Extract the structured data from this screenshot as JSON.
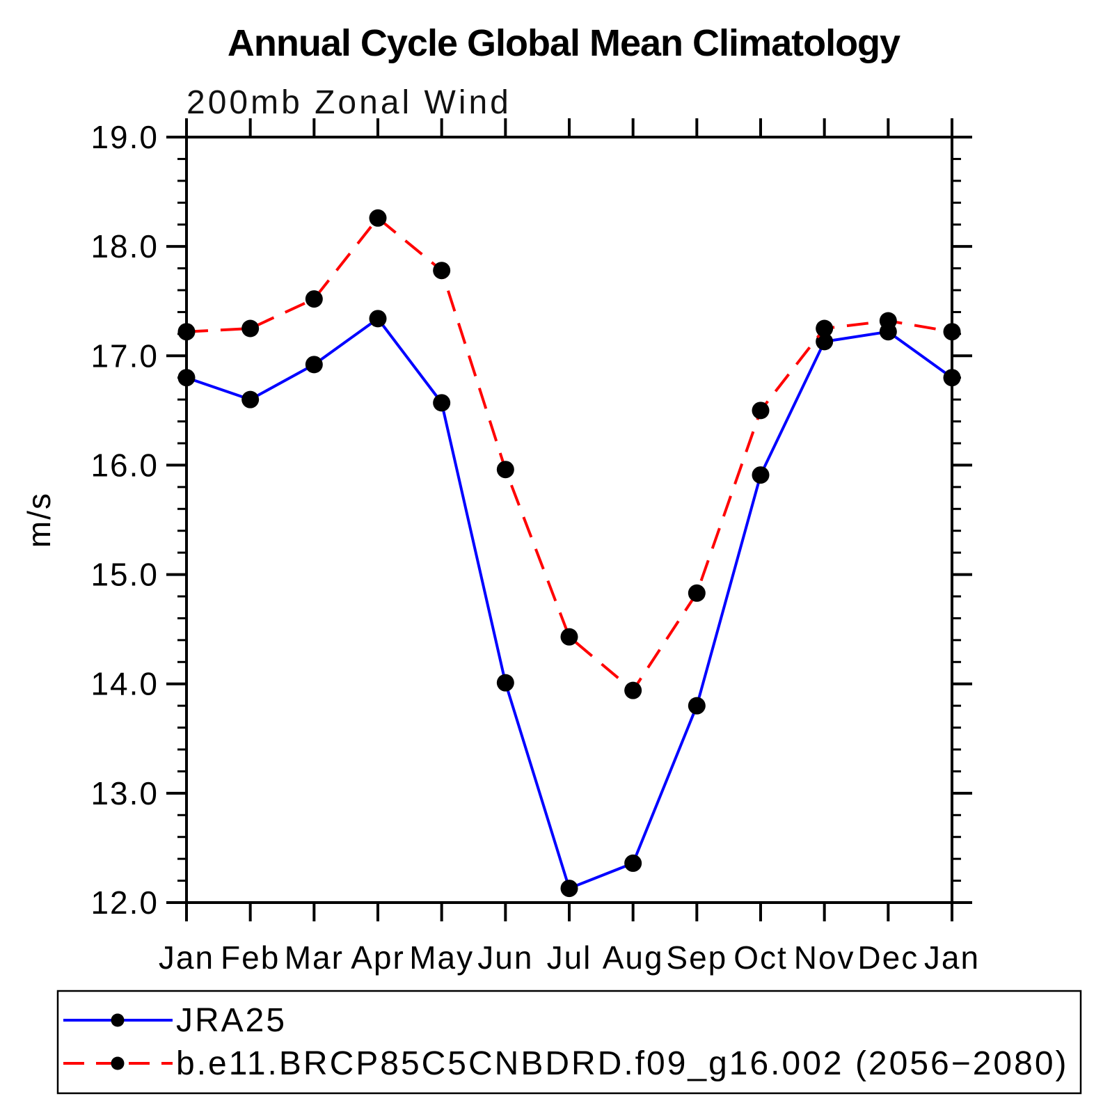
{
  "chart_data": {
    "type": "line",
    "title": "Annual Cycle Global Mean Climatology",
    "subtitle": "200mb Zonal Wind",
    "ylabel": "m/s",
    "categories": [
      "Jan",
      "Feb",
      "Mar",
      "Apr",
      "May",
      "Jun",
      "Jul",
      "Aug",
      "Sep",
      "Oct",
      "Nov",
      "Dec",
      "Jan"
    ],
    "series": [
      {
        "name": "JRA25",
        "color": "#0000ff",
        "line_style": "solid",
        "marker": "filled-circle",
        "marker_color": "#000000",
        "values": [
          16.8,
          16.6,
          16.92,
          17.34,
          16.57,
          14.01,
          12.13,
          12.36,
          13.8,
          15.91,
          17.13,
          17.22,
          16.8
        ]
      },
      {
        "name": "b.e11.BRCP85C5CNBDRD.f09_g16.002 (2056−2080)",
        "color": "#ff0000",
        "line_style": "dashed",
        "marker": "filled-circle",
        "marker_color": "#000000",
        "values": [
          17.22,
          17.25,
          17.52,
          18.26,
          17.78,
          15.96,
          14.43,
          13.94,
          14.83,
          16.5,
          17.25,
          17.32,
          17.22
        ]
      }
    ],
    "ylim": [
      12.0,
      19.0
    ],
    "ytick_major_step": 1.0,
    "ytick_minor_step": 0.2,
    "ytick_labels": [
      "12.0",
      "13.0",
      "14.0",
      "15.0",
      "16.0",
      "17.0",
      "18.0",
      "19.0"
    ],
    "grid": false,
    "legend_position": "below-plot-left",
    "axis_color": "#000000",
    "background_color": "#ffffff"
  }
}
